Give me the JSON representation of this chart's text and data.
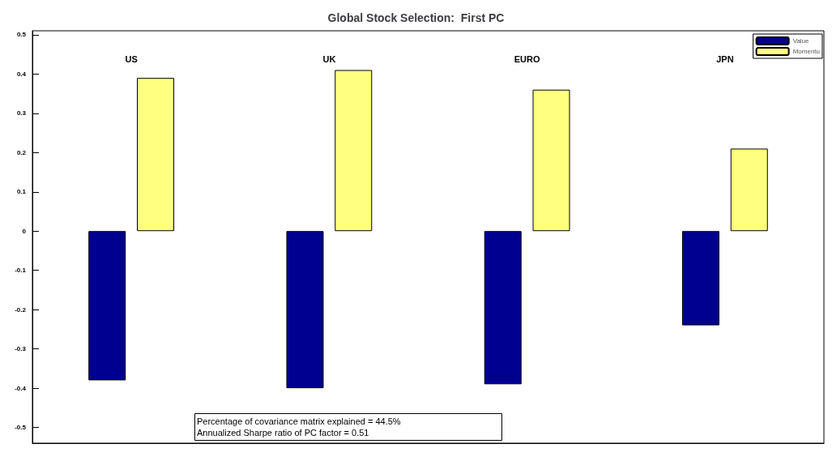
{
  "chart_data": {
    "type": "bar",
    "title": "Global Stock Selection:  First PC",
    "categories": [
      "US",
      "UK",
      "EURO",
      "JPN"
    ],
    "series": [
      {
        "name": "Value",
        "color": "#000090",
        "values": [
          -0.38,
          -0.4,
          -0.39,
          -0.24
        ]
      },
      {
        "name": "Momentu",
        "color": "#ffff80",
        "values": [
          0.39,
          0.41,
          0.36,
          0.21
        ]
      }
    ],
    "ylim": [
      -0.54,
      0.51
    ],
    "yticks": [
      -0.5,
      -0.4,
      -0.3,
      -0.2,
      -0.1,
      0,
      0.1,
      0.2,
      0.3,
      0.4,
      0.5
    ],
    "grid": false,
    "legend": "top right",
    "annotations": [
      "Percentage of covariance matrix explained = 44.5%",
      "Annualized Sharpe ratio of PC factor = 0.51"
    ]
  }
}
